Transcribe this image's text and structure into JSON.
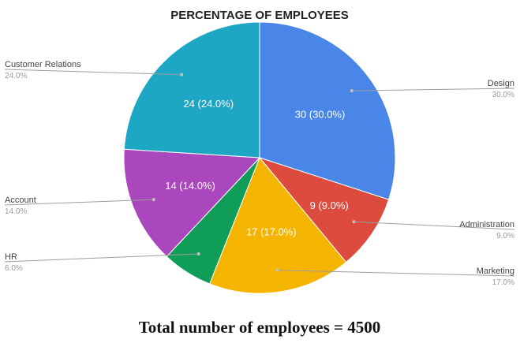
{
  "chart_data": {
    "type": "pie",
    "title": "PERCENTAGE OF EMPLOYEES",
    "slices": [
      {
        "name": "Design",
        "value": 30,
        "percent_text": "30.0%",
        "data_label": "30 (30.0%)",
        "color": "#4a86e8"
      },
      {
        "name": "Administration",
        "value": 9,
        "percent_text": "9.0%",
        "data_label": "9 (9.0%)",
        "color": "#dd4a3e"
      },
      {
        "name": "Marketing",
        "value": 17,
        "percent_text": "17.0%",
        "data_label": "17 (17.0%)",
        "color": "#f4b400"
      },
      {
        "name": "HR",
        "value": 6,
        "percent_text": "6.0%",
        "data_label": "",
        "color": "#0f9d58"
      },
      {
        "name": "Account",
        "value": 14,
        "percent_text": "14.0%",
        "data_label": "14 (14.0%)",
        "color": "#ab47bc"
      },
      {
        "name": "Customer Relations",
        "value": 24,
        "percent_text": "24.0%",
        "data_label": "24 (24.0%)",
        "color": "#1ea7c4"
      }
    ]
  },
  "footer": {
    "text": "Total number of employees = 4500"
  }
}
